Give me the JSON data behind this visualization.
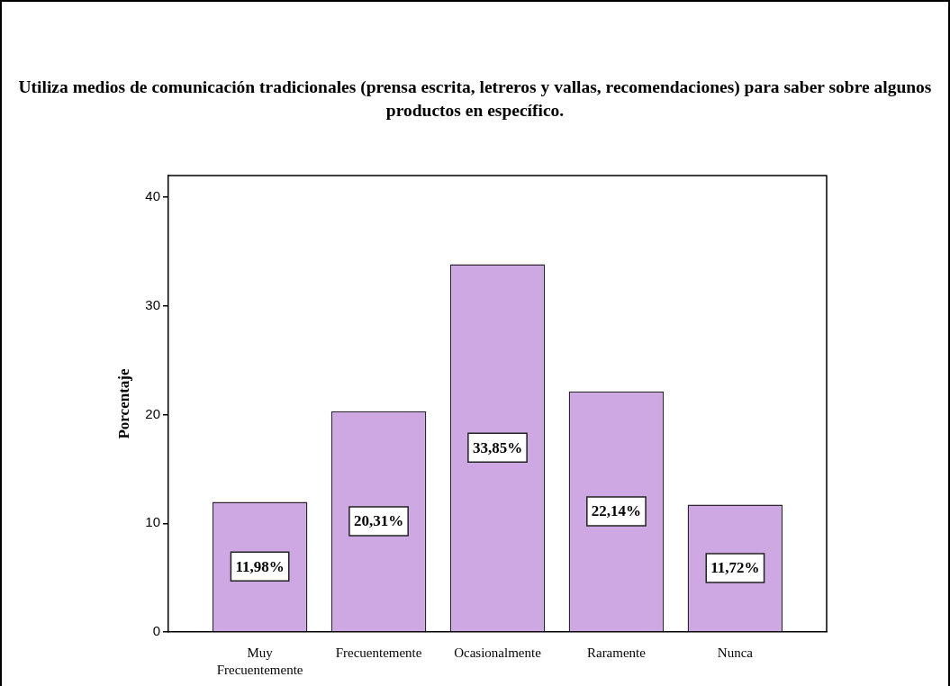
{
  "chart_data": {
    "type": "bar",
    "title": "Utiliza medios de comunicación tradicionales (prensa escrita, letreros y vallas, recomendaciones) para saber sobre algunos productos en específico.",
    "ylabel": "Porcentaje",
    "categories": [
      "Muy Frecuentemente",
      "Frecuentemente",
      "Ocasionalmente",
      "Raramente",
      "Nunca"
    ],
    "values": [
      11.98,
      20.31,
      33.85,
      22.14,
      11.72
    ],
    "value_labels": [
      "11,98%",
      "20,31%",
      "33,85%",
      "22,14%",
      "11,72%"
    ],
    "color": "#cda8e2",
    "ylim": [
      0,
      42
    ],
    "yticks": [
      0,
      10,
      20,
      30,
      40
    ]
  }
}
